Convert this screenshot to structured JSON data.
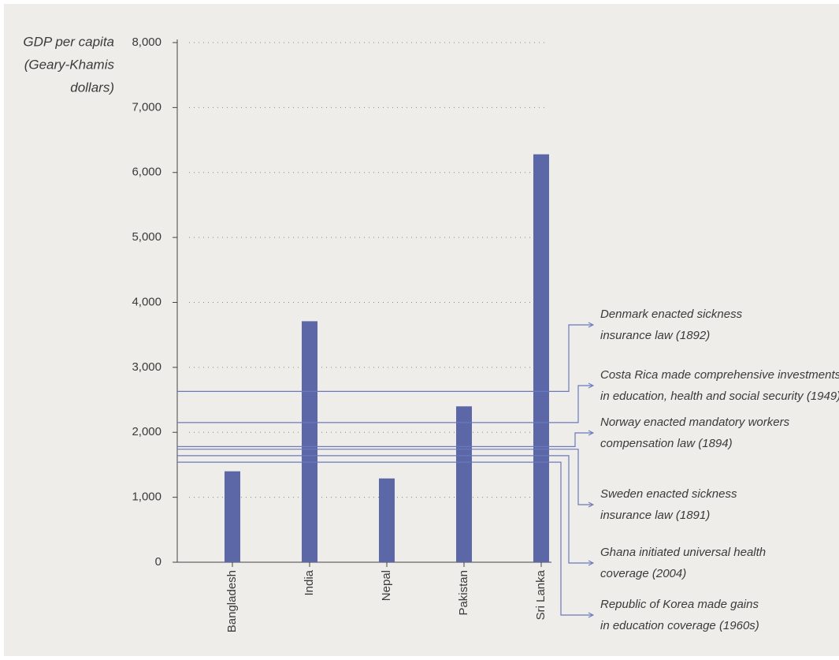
{
  "chart_data": {
    "type": "bar",
    "y_label": [
      "GDP per capita",
      "(Geary-Khamis",
      "dollars)"
    ],
    "categories": [
      "Bangladesh",
      "India",
      "Nepal",
      "Pakistan",
      "Sri Lanka"
    ],
    "values": [
      1400,
      3710,
      1290,
      2400,
      6280
    ],
    "color": "#5b67a7",
    "ylim": [
      0,
      8000
    ],
    "yticks": [
      0,
      {
        "value": 1000,
        "label": "1,000"
      },
      {
        "value": 2000,
        "label": "2,000"
      },
      {
        "value": 3000,
        "label": "3,000"
      },
      {
        "value": 4000,
        "label": "4,000"
      },
      {
        "value": 5000,
        "label": "5,000"
      },
      {
        "value": 6000,
        "label": "6,000"
      },
      {
        "value": 7000,
        "label": "7,000"
      },
      {
        "value": 8000,
        "label": "8,000"
      }
    ],
    "grid": true,
    "reference_lines": [
      {
        "value": 2630,
        "label": [
          "Denmark enacted sickness",
          "insurance law (1892)"
        ]
      },
      {
        "value": 2150,
        "label": [
          "Costa Rica made comprehensive investments",
          "in education, health and social security (1949)"
        ]
      },
      {
        "value": 1780,
        "label": [
          "Norway enacted mandatory workers",
          "compensation law (1894)"
        ]
      },
      {
        "value": 1740,
        "label": [
          "Sweden enacted sickness",
          "insurance law (1891)"
        ]
      },
      {
        "value": 1640,
        "label": [
          "Ghana initiated universal health",
          "coverage (2004)"
        ]
      },
      {
        "value": 1540,
        "label": [
          "Republic of Korea made gains",
          "in education coverage (1960s)"
        ]
      }
    ],
    "reference_color": "#6a79bd"
  }
}
